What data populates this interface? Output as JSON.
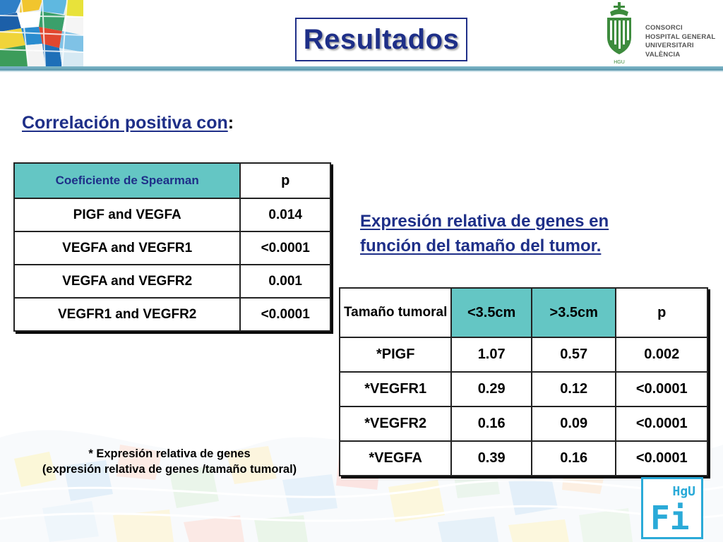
{
  "title": "Resultados",
  "logo": {
    "lines": [
      "CONSORCI",
      "HOSPITAL GENERAL",
      "UNIVERSITARI",
      "VALÈNCIA"
    ],
    "emblem_text": "HGU"
  },
  "correlation": {
    "heading": "Correlación positiva con",
    "colon": ":",
    "table": {
      "headers": [
        "Coeficiente de Spearman",
        "p"
      ],
      "rows": [
        [
          "PIGF and VEGFA",
          "0.014"
        ],
        [
          "VEGFA and VEGFR1",
          "<0.0001"
        ],
        [
          "VEGFA and VEGFR2",
          "0.001"
        ],
        [
          "VEGFR1 and VEGFR2",
          "<0.0001"
        ]
      ]
    }
  },
  "expression": {
    "heading_line1": "Expresión relativa de genes en",
    "heading_line2": "función del tamaño del tumor.",
    "table": {
      "headers": [
        "Tamaño tumoral",
        "<3.5cm",
        ">3.5cm",
        "p"
      ],
      "rows": [
        [
          "*PIGF",
          "1.07",
          "0.57",
          "0.002"
        ],
        [
          "*VEGFR1",
          "0.29",
          "0.12",
          "<0.0001"
        ],
        [
          "*VEGFR2",
          "0.16",
          "0.09",
          "<0.0001"
        ],
        [
          "*VEGFA",
          "0.39",
          "0.16",
          "<0.0001"
        ]
      ]
    }
  },
  "footnote": {
    "line1": "* Expresión relativa de genes",
    "line2": "(expresión relativa de genes /tamaño tumoral)"
  },
  "corner_logo": {
    "top": "HgU",
    "main": "Fi"
  },
  "colors": {
    "title_blue": "#1e2f88",
    "teal_header": "#64c6c4",
    "logo_green": "#3d8b3d",
    "corner_logo_blue": "#2aaad8"
  }
}
